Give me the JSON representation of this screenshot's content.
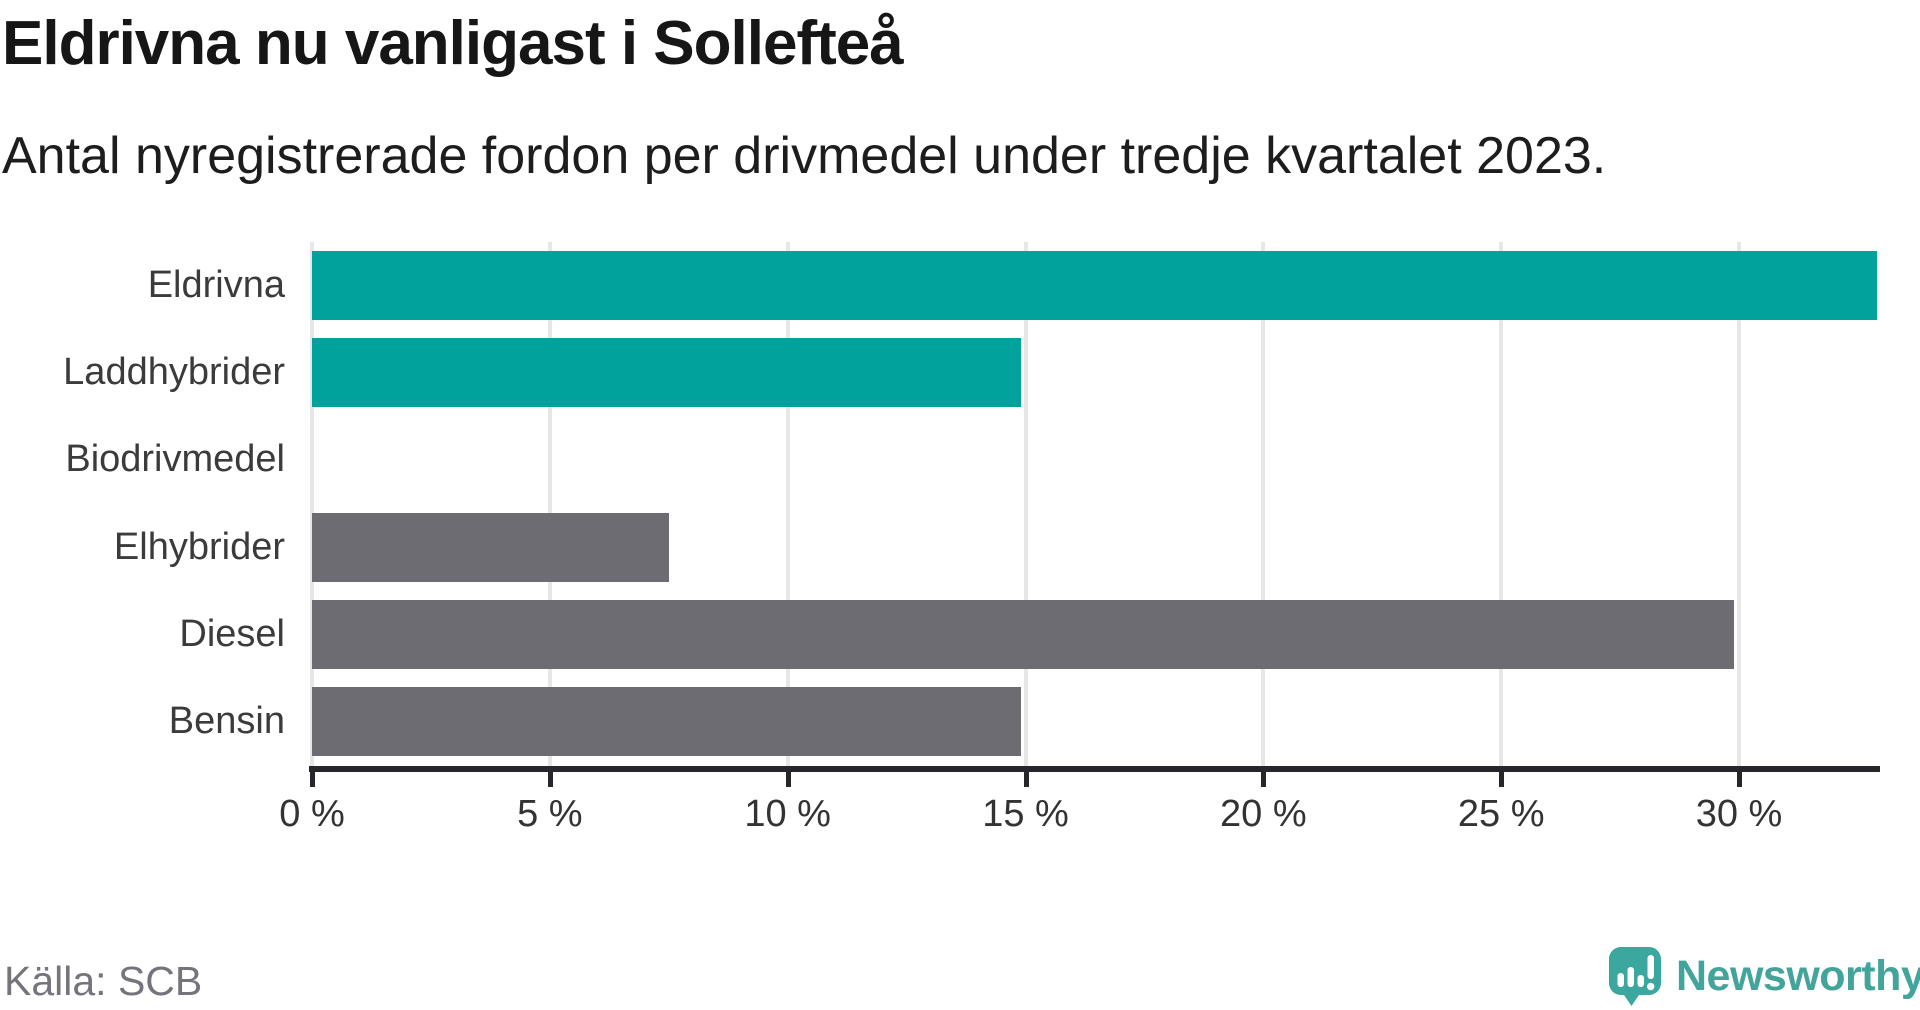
{
  "header": {
    "title": "Eldrivna nu vanligast i Sollefteå",
    "subtitle": "Antal nyregistrerade fordon per drivmedel under tredje kvartalet 2023."
  },
  "footer": {
    "source": "Källa: SCB",
    "logo_text": "Newsworthy"
  },
  "colors": {
    "highlight_bar": "#00a29b",
    "default_bar": "#6d6c72",
    "axis": "#26262b",
    "gridline": "#e7e7e7",
    "category_label": "#3b3b3b",
    "tick_label": "#333333",
    "source_text": "#75747c",
    "logo_teal": "#3ba79e"
  },
  "chart_data": {
    "type": "bar",
    "orientation": "horizontal",
    "title": "Eldrivna nu vanligast i Sollefteå",
    "subtitle": "Antal nyregistrerade fordon per drivmedel under tredje kvartalet 2023.",
    "categories": [
      "Eldrivna",
      "Laddhybrider",
      "Biodrivmedel",
      "Elhybrider",
      "Diesel",
      "Bensin"
    ],
    "values": [
      32.9,
      14.9,
      0,
      7.5,
      29.9,
      14.9
    ],
    "unit": "%",
    "bar_colors": [
      "#00a29b",
      "#00a29b",
      "#6d6c72",
      "#6d6c72",
      "#6d6c72",
      "#6d6c72"
    ],
    "xlim": [
      0,
      32.9
    ],
    "xtick_values": [
      0,
      5,
      10,
      15,
      20,
      25,
      30
    ],
    "xtick_labels": [
      "0 %",
      "5 %",
      "10 %",
      "15 %",
      "20 %",
      "25 %",
      "30 %"
    ],
    "grid": true,
    "legend": false,
    "source": "Källa: SCB"
  }
}
